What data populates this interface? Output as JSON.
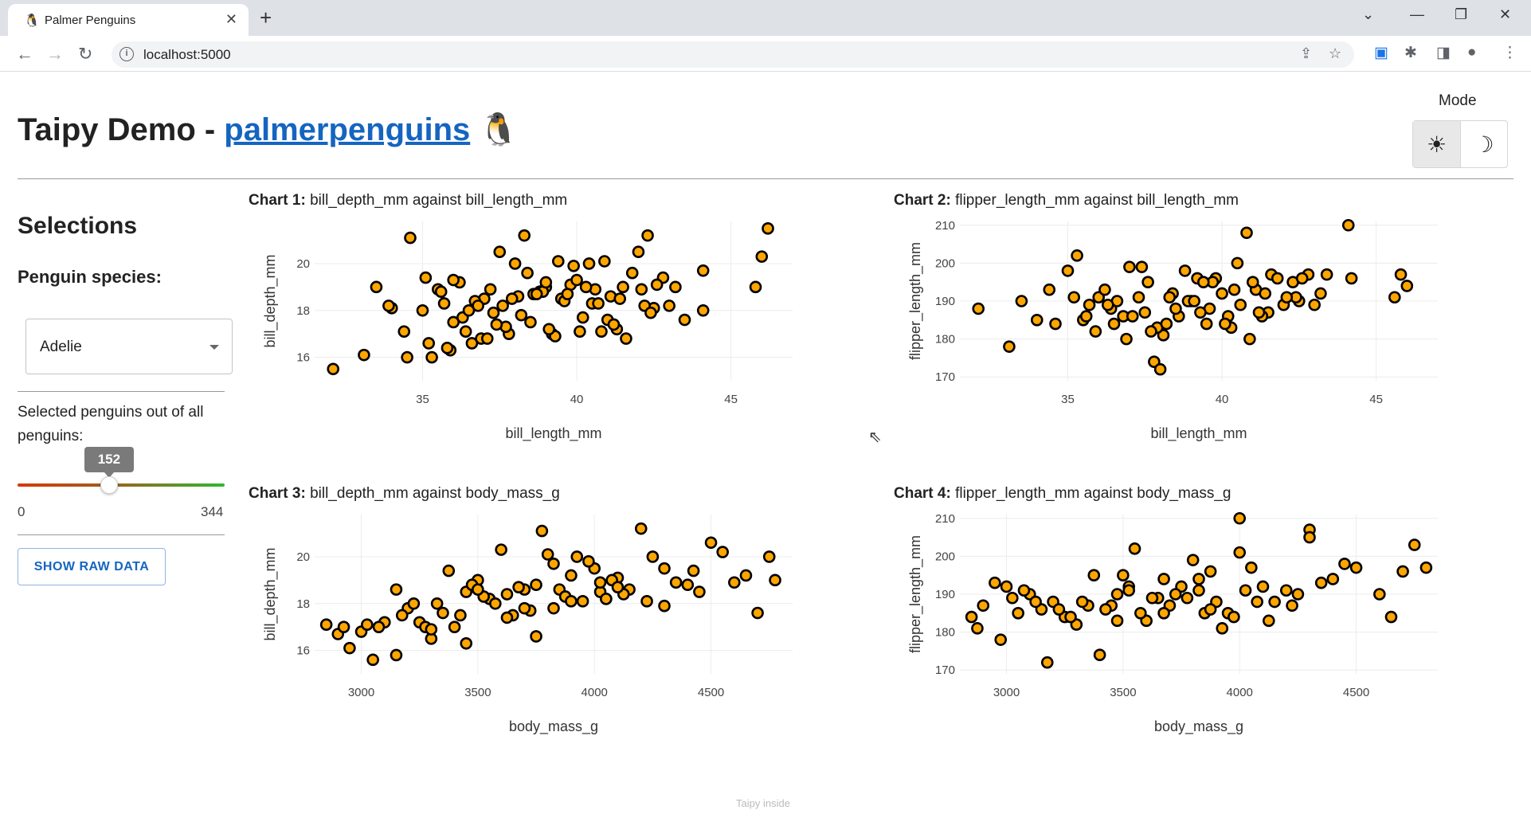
{
  "browser": {
    "tab_title": "Palmer Penguins",
    "tab_icon": "🐧",
    "url": "localhost:5000"
  },
  "app": {
    "title_prefix": "Taipy Demo - ",
    "title_link": "palmerpenguins",
    "title_emoji": "🐧",
    "mode_label": "Mode",
    "light_icon": "☀",
    "dark_icon": "☽"
  },
  "sidebar": {
    "heading": "Selections",
    "species_label": "Penguin species:",
    "species_value": "Adelie",
    "selected_label": "Selected penguins out of all penguins:",
    "slider_value": "152",
    "slider_min": "0",
    "slider_max": "344",
    "slider_fraction": 0.442,
    "raw_button": "SHOW RAW DATA"
  },
  "footer": "Taipy inside",
  "colors": {
    "marker_fill": "#ffa500",
    "marker_stroke": "#000000",
    "link": "#1565c0",
    "grid": "#ececec"
  },
  "chart_data": [
    {
      "type": "scatter",
      "prefix": "Chart 1:",
      "title": "bill_depth_mm against bill_length_mm",
      "xlabel": "bill_length_mm",
      "ylabel": "bill_depth_mm",
      "xlim": [
        31.5,
        47.0
      ],
      "ylim": [
        15.0,
        21.8
      ],
      "xticks": [
        35,
        40,
        45
      ],
      "yticks": [
        16,
        18,
        20
      ],
      "x": [
        32.1,
        33.1,
        33.5,
        34.6,
        35.0,
        35.1,
        35.3,
        35.5,
        36.0,
        36.2,
        36.6,
        37.0,
        37.5,
        37.8,
        38.1,
        38.3,
        38.8,
        39.0,
        39.2,
        39.5,
        39.8,
        40.2,
        40.5,
        40.9,
        41.3,
        41.5,
        41.8,
        42.0,
        42.3,
        42.5,
        42.8,
        43.0,
        43.5,
        44.1,
        45.8,
        46.0,
        35.7,
        36.4,
        37.3,
        38.6,
        39.6,
        40.6,
        41.1,
        42.2,
        43.2,
        44.1,
        34.0,
        35.9,
        36.9,
        37.7,
        38.5,
        39.3,
        40.1,
        40.8,
        41.6,
        36.7,
        37.9,
        38.9,
        39.7,
        40.3,
        41.4,
        42.4,
        35.2,
        36.3,
        37.1,
        38.2,
        39.1,
        40.0,
        41.0,
        34.4,
        35.6,
        36.5,
        37.6,
        38.4,
        39.4,
        40.4,
        41.2,
        42.1,
        36.0,
        37.2,
        38.0,
        39.0,
        40.7,
        36.8,
        38.7,
        39.9,
        37.4,
        35.8,
        42.6,
        33.9,
        34.5,
        46.2
      ],
      "y": [
        15.5,
        16.1,
        19.0,
        21.1,
        18.0,
        19.4,
        16.0,
        18.9,
        17.5,
        19.2,
        16.6,
        18.5,
        20.5,
        17.0,
        18.6,
        21.2,
        18.8,
        19.0,
        17.0,
        18.5,
        19.1,
        17.7,
        18.3,
        20.1,
        17.2,
        19.0,
        19.6,
        20.5,
        21.2,
        18.1,
        19.4,
        18.2,
        17.6,
        18.0,
        19.0,
        20.3,
        18.3,
        17.1,
        17.9,
        18.7,
        18.4,
        18.9,
        18.6,
        18.2,
        19.0,
        19.7,
        18.1,
        16.3,
        16.8,
        17.3,
        17.5,
        16.9,
        17.1,
        17.1,
        16.8,
        18.4,
        18.5,
        18.8,
        18.7,
        19.0,
        18.5,
        17.9,
        16.6,
        17.7,
        16.8,
        17.8,
        17.2,
        19.3,
        17.6,
        17.1,
        18.8,
        18.0,
        18.2,
        19.6,
        20.1,
        20.0,
        17.4,
        18.9,
        19.3,
        18.9,
        20.0,
        19.2,
        18.3,
        18.2,
        18.7,
        19.9,
        17.4,
        16.4,
        19.1,
        18.2,
        16.0,
        21.5
      ]
    },
    {
      "type": "scatter",
      "prefix": "Chart 2:",
      "title": "flipper_length_mm against bill_length_mm",
      "xlabel": "bill_length_mm",
      "ylabel": "flipper_length_mm",
      "xlim": [
        31.5,
        47.0
      ],
      "ylim": [
        169.0,
        211.0
      ],
      "xticks": [
        35,
        40,
        45
      ],
      "yticks": [
        170,
        180,
        190,
        200,
        210
      ],
      "x": [
        32.1,
        33.1,
        33.5,
        34.0,
        34.4,
        34.6,
        35.0,
        35.2,
        35.3,
        35.5,
        35.7,
        36.0,
        36.2,
        36.5,
        36.8,
        37.0,
        37.3,
        37.6,
        37.8,
        38.1,
        38.4,
        38.8,
        39.0,
        39.2,
        39.5,
        39.8,
        40.2,
        40.5,
        40.8,
        41.1,
        41.4,
        41.6,
        41.8,
        42.0,
        42.3,
        42.5,
        42.8,
        43.2,
        44.1,
        45.6,
        45.8,
        46.0,
        36.4,
        37.5,
        38.6,
        39.6,
        40.6,
        41.5,
        42.4,
        36.9,
        37.9,
        38.9,
        40.0,
        41.0,
        35.9,
        37.1,
        38.2,
        39.3,
        40.3,
        41.3,
        42.1,
        43.0,
        37.4,
        38.5,
        39.1,
        40.4,
        36.6,
        37.7,
        38.0,
        39.7,
        40.9,
        42.6,
        35.6,
        36.3,
        38.3,
        39.4,
        40.1,
        41.2,
        44.2,
        43.4
      ],
      "y": [
        188,
        178,
        190,
        185,
        193,
        184,
        198,
        191,
        202,
        185,
        189,
        191,
        193,
        184,
        186,
        199,
        191,
        195,
        174,
        181,
        192,
        198,
        190,
        196,
        184,
        196,
        186,
        200,
        208,
        193,
        192,
        197,
        196,
        189,
        195,
        190,
        197,
        192,
        210,
        191,
        197,
        194,
        188,
        187,
        186,
        188,
        189,
        187,
        191,
        180,
        183,
        190,
        192,
        195,
        182,
        186,
        184,
        187,
        183,
        186,
        191,
        189,
        199,
        188,
        190,
        193,
        190,
        182,
        172,
        195,
        180,
        196,
        186,
        189,
        191,
        195,
        184,
        187,
        196,
        197
      ]
    },
    {
      "type": "scatter",
      "prefix": "Chart 3:",
      "title": "bill_depth_mm against body_mass_g",
      "xlabel": "body_mass_g",
      "ylabel": "bill_depth_mm",
      "xlim": [
        2800,
        4850
      ],
      "ylim": [
        15.0,
        21.8
      ],
      "xticks": [
        3000,
        3500,
        4000,
        4500
      ],
      "yticks": [
        16,
        18,
        20
      ],
      "x": [
        2850,
        2900,
        2925,
        2950,
        3000,
        3050,
        3100,
        3150,
        3200,
        3250,
        3300,
        3325,
        3350,
        3400,
        3450,
        3500,
        3550,
        3600,
        3650,
        3700,
        3750,
        3800,
        3850,
        3900,
        3950,
        4000,
        4050,
        4100,
        4150,
        4200,
        4250,
        4300,
        4350,
        4400,
        4450,
        4500,
        4550,
        4600,
        4650,
        4700,
        4750,
        4775,
        3075,
        3175,
        3275,
        3375,
        3475,
        3525,
        3575,
        3625,
        3675,
        3725,
        3775,
        3825,
        3875,
        3925,
        3975,
        4025,
        4075,
        4125,
        3025,
        3225,
        3425,
        3625,
        3825,
        4025,
        4225,
        4425,
        3300,
        3500,
        3700,
        3900,
        4100,
        4300,
        3150,
        3450,
        3750,
        4050
      ],
      "y": [
        17.1,
        16.7,
        17.0,
        16.1,
        16.8,
        15.6,
        17.2,
        18.6,
        17.8,
        17.2,
        16.5,
        18.0,
        17.6,
        17.0,
        18.5,
        19.0,
        18.2,
        20.3,
        17.5,
        18.6,
        18.8,
        20.1,
        18.6,
        19.2,
        18.1,
        19.5,
        18.2,
        19.1,
        18.6,
        21.2,
        20.0,
        19.5,
        18.9,
        18.8,
        18.5,
        20.6,
        20.2,
        18.9,
        19.2,
        17.6,
        20.0,
        19.0,
        17.0,
        17.5,
        17.0,
        19.4,
        18.8,
        18.3,
        18.0,
        17.4,
        18.7,
        17.7,
        21.1,
        19.7,
        18.3,
        20.0,
        19.8,
        18.5,
        19.0,
        18.4,
        17.1,
        18.0,
        17.5,
        18.4,
        17.8,
        18.9,
        18.1,
        19.4,
        16.9,
        18.6,
        17.8,
        18.1,
        18.7,
        17.9,
        15.8,
        16.3,
        16.6,
        18.2
      ]
    },
    {
      "type": "scatter",
      "prefix": "Chart 4:",
      "title": "flipper_length_mm against body_mass_g",
      "xlabel": "body_mass_g",
      "ylabel": "flipper_length_mm",
      "xlim": [
        2800,
        4850
      ],
      "ylim": [
        169.0,
        211.0
      ],
      "xticks": [
        3000,
        3500,
        4000,
        4500
      ],
      "yticks": [
        170,
        180,
        190,
        200,
        210
      ],
      "x": [
        2850,
        2875,
        2900,
        2950,
        2975,
        3000,
        3050,
        3100,
        3150,
        3175,
        3200,
        3250,
        3300,
        3350,
        3400,
        3450,
        3500,
        3550,
        3600,
        3650,
        3700,
        3750,
        3800,
        3850,
        3900,
        3950,
        4000,
        4050,
        4100,
        4150,
        4200,
        4250,
        4300,
        4350,
        4400,
        4450,
        4500,
        4600,
        4650,
        4700,
        4750,
        4800,
        3075,
        3125,
        3225,
        3275,
        3375,
        3425,
        3475,
        3525,
        3575,
        3625,
        3675,
        3725,
        3775,
        3825,
        3875,
        3925,
        3975,
        4025,
        4075,
        4125,
        3325,
        3475,
        3675,
        3875,
        4000,
        4300,
        3025,
        3525,
        3825,
        4225
      ],
      "y": [
        184,
        181,
        187,
        193,
        178,
        192,
        185,
        190,
        186,
        172,
        188,
        184,
        182,
        187,
        174,
        187,
        195,
        202,
        183,
        189,
        187,
        192,
        199,
        185,
        188,
        185,
        201,
        197,
        192,
        188,
        191,
        190,
        207,
        193,
        194,
        198,
        197,
        190,
        184,
        196,
        203,
        197,
        191,
        188,
        186,
        184,
        195,
        186,
        183,
        192,
        185,
        189,
        185,
        190,
        189,
        191,
        186,
        181,
        184,
        191,
        188,
        183,
        188,
        190,
        194,
        196,
        210,
        205,
        189,
        191,
        194,
        187
      ]
    }
  ]
}
